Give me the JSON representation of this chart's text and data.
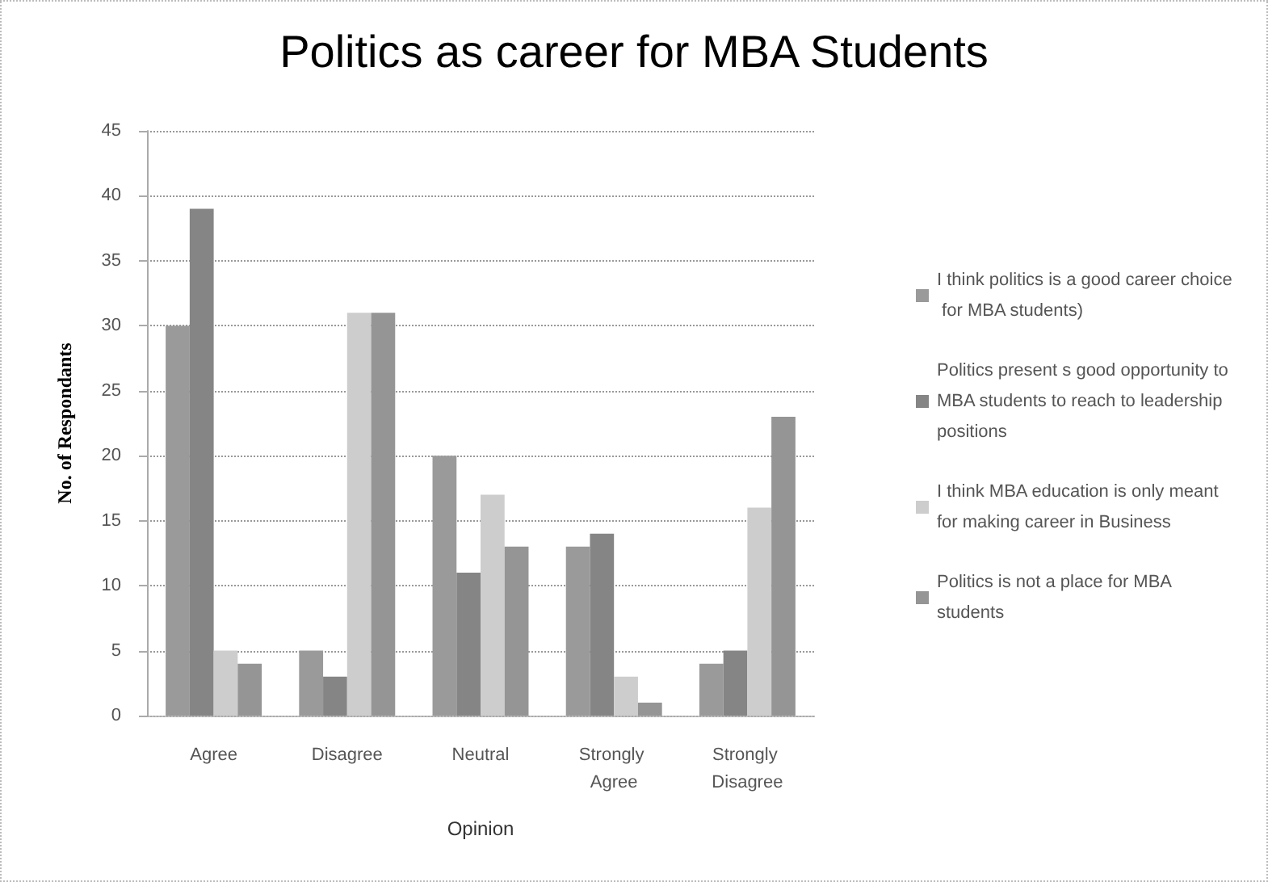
{
  "chart_data": {
    "type": "bar",
    "title": "Politics as career for MBA Students",
    "xlabel": "Opinion",
    "ylabel": "No. of Respondants",
    "categories": [
      "Agree",
      "Disagree",
      "Neutral",
      "Strongly Agree",
      "Strongly Disagree"
    ],
    "series": [
      {
        "name": "I think politics is a good career choice for MBA students)",
        "color": "#9a9a9a",
        "values": [
          30,
          5,
          20,
          13,
          4
        ]
      },
      {
        "name": "Politics present s good opportunity to MBA students to reach to leadership positions",
        "color": "#858585",
        "values": [
          39,
          3,
          11,
          14,
          5
        ]
      },
      {
        "name": "I think MBA education is only meant for making career in Business",
        "color": "#cdcdcd",
        "values": [
          5,
          31,
          17,
          3,
          16
        ]
      },
      {
        "name": "Politics is not a place for MBA students",
        "color": "#959595",
        "values": [
          4,
          31,
          13,
          1,
          23
        ]
      }
    ],
    "ylim": [
      0,
      45
    ],
    "yticks": [
      0,
      5,
      10,
      15,
      20,
      25,
      30,
      35,
      40,
      45
    ],
    "grid": "y",
    "legend": "right"
  }
}
